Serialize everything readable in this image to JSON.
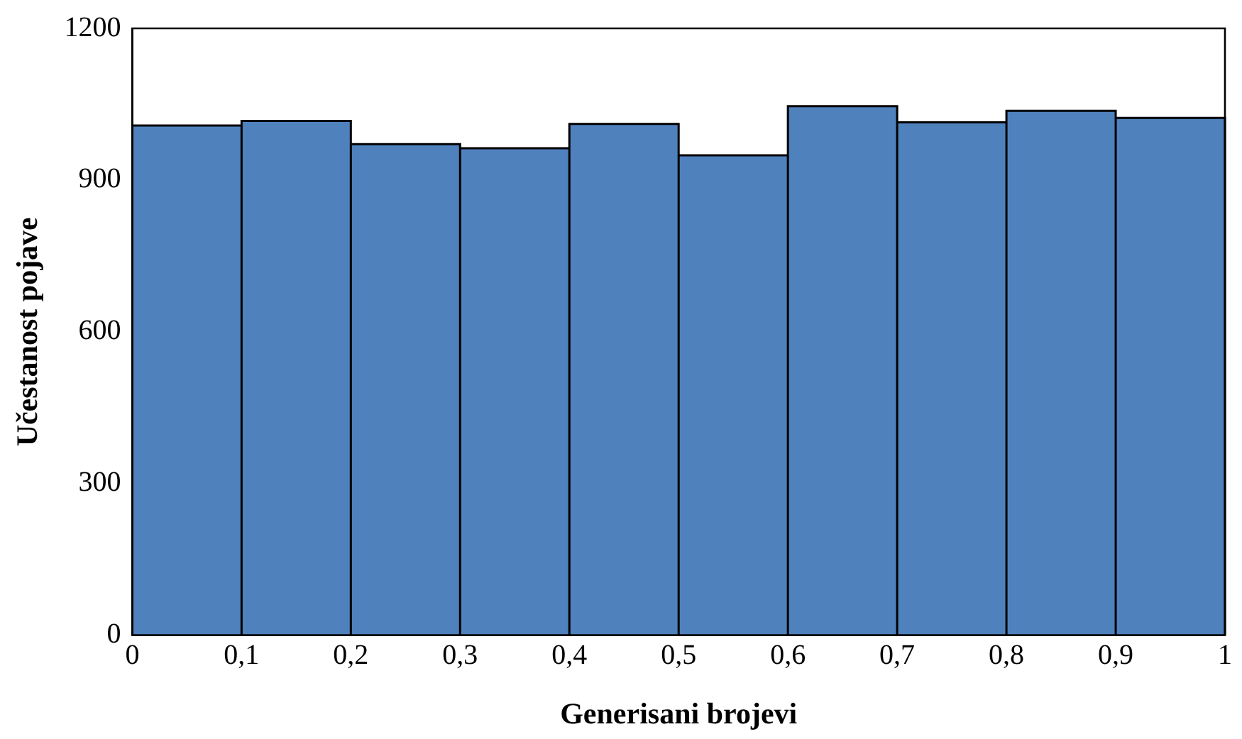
{
  "chart_data": {
    "type": "histogram",
    "xlabel": "Generisani brojevi",
    "ylabel": "Učestanost pojave",
    "bins": [
      0,
      0.1,
      0.2,
      0.3,
      0.4,
      0.5,
      0.6,
      0.7,
      0.8,
      0.9,
      1
    ],
    "values": [
      1008,
      1017,
      971,
      963,
      1011,
      949,
      1046,
      1014,
      1037,
      1023
    ],
    "color": "#4f81bd",
    "xlim": [
      0,
      1
    ],
    "xticks": [
      0,
      {
        "value": 0.1,
        "label": "0,1"
      },
      {
        "value": 0.2,
        "label": "0,2"
      },
      {
        "value": 0.3,
        "label": "0,3"
      },
      {
        "value": 0.4,
        "label": "0,4"
      },
      {
        "value": 0.5,
        "label": "0,5"
      },
      {
        "value": 0.6,
        "label": "0,6"
      },
      {
        "value": 0.7,
        "label": "0,7"
      },
      {
        "value": 0.8,
        "label": "0,8"
      },
      {
        "value": 0.9,
        "label": "0,9"
      },
      1
    ],
    "ylim": [
      0,
      1200
    ],
    "yticks": [
      0,
      300,
      600,
      900,
      1200
    ],
    "grid": false,
    "legend": false
  }
}
